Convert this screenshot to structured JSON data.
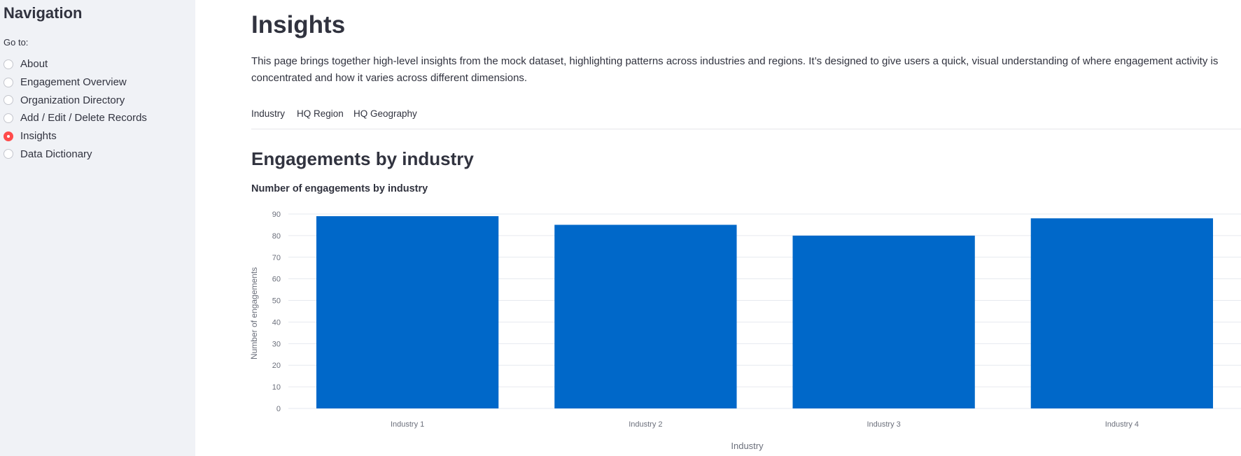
{
  "sidebar": {
    "title": "Navigation",
    "goto_label": "Go to:",
    "items": [
      {
        "label": "About",
        "selected": false
      },
      {
        "label": "Engagement Overview",
        "selected": false
      },
      {
        "label": "Organization Directory",
        "selected": false
      },
      {
        "label": "Add / Edit / Delete Records",
        "selected": false
      },
      {
        "label": "Insights",
        "selected": true
      },
      {
        "label": "Data Dictionary",
        "selected": false
      }
    ]
  },
  "main": {
    "title": "Insights",
    "intro": "This page brings together high-level insights from the mock dataset, highlighting patterns across industries and regions. It’s designed to give users a quick, visual understanding of where engagement activity is concentrated and how it varies across different dimensions.",
    "tabs": [
      {
        "label": "Industry",
        "active": true
      },
      {
        "label": "HQ Region",
        "active": false
      },
      {
        "label": "HQ Geography",
        "active": false
      }
    ],
    "section_heading": "Engagements by industry"
  },
  "colors": {
    "accent": "#ff4b4b",
    "bar": "#0068c9"
  },
  "chart_data": {
    "type": "bar",
    "title": "Number of engagements by industry",
    "categories": [
      "Industry 1",
      "Industry 2",
      "Industry 3",
      "Industry 4"
    ],
    "values": [
      89,
      85,
      80,
      88
    ],
    "xlabel": "Industry",
    "ylabel": "Number of engagements",
    "ylim": [
      0,
      90
    ],
    "yticks": [
      0,
      10,
      20,
      30,
      40,
      50,
      60,
      70,
      80,
      90
    ],
    "grid": true,
    "legend": "none"
  }
}
